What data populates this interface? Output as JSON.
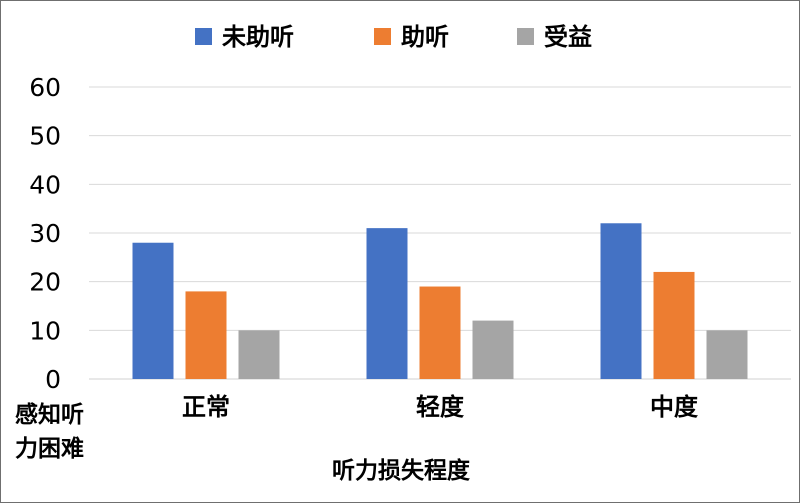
{
  "chart_data": {
    "type": "bar",
    "categories": [
      "正常",
      "轻度",
      "中度"
    ],
    "series": [
      {
        "name": "未助听",
        "color": "#4472c4",
        "values": [
          28,
          31,
          32
        ]
      },
      {
        "name": "助听",
        "color": "#ed7d31",
        "values": [
          18,
          19,
          22
        ]
      },
      {
        "name": "受益",
        "color": "#a5a5a5",
        "values": [
          10,
          12,
          10
        ]
      }
    ],
    "ylim": [
      0,
      60
    ],
    "yticks": [
      0,
      10,
      20,
      30,
      40,
      50,
      60
    ],
    "xlabel": "听力损失程度",
    "ylabel": [
      "感知听",
      "力困难"
    ],
    "legend_position": "top-center",
    "grid": true
  }
}
